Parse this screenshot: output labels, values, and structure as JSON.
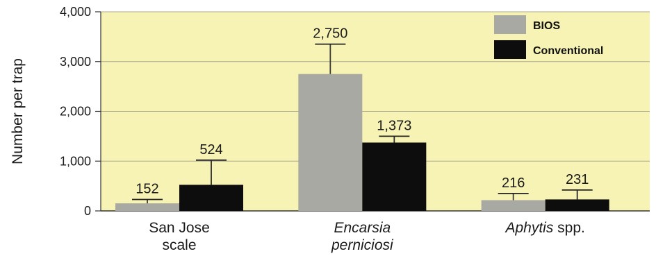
{
  "chart_data": {
    "type": "bar",
    "ylabel": "Number per trap",
    "ylim": [
      0,
      4000
    ],
    "yticks": [
      0,
      1000,
      2000,
      3000,
      4000
    ],
    "ytick_labels": [
      "0",
      "1,000",
      "2,000",
      "3,000",
      "4,000"
    ],
    "grid": "horizontal",
    "legend_position": "top-right",
    "categories": [
      {
        "lines": [
          {
            "italic": "",
            "normal": "San Jose"
          },
          {
            "italic": "",
            "normal": "scale"
          }
        ]
      },
      {
        "lines": [
          {
            "italic": "Encarsia",
            "normal": ""
          },
          {
            "italic": "perniciosi",
            "normal": ""
          }
        ]
      },
      {
        "lines": [
          {
            "italic": "Aphytis",
            "normal": " spp."
          }
        ]
      }
    ],
    "series": [
      {
        "name": "BIOS",
        "color": "#a9a9a3",
        "values": [
          152,
          2750,
          216
        ],
        "labels": [
          "152",
          "2,750",
          "216"
        ],
        "error_upper": [
          230,
          3350,
          350
        ]
      },
      {
        "name": "Conventional",
        "color": "#0d0d0d",
        "values": [
          524,
          1373,
          231
        ],
        "labels": [
          "524",
          "1,373",
          "231"
        ],
        "error_upper": [
          1020,
          1500,
          420
        ]
      }
    ],
    "colors": {
      "plot_background": "#f6f3b4",
      "gridline": "#aaa890",
      "axis": "#333333"
    }
  }
}
